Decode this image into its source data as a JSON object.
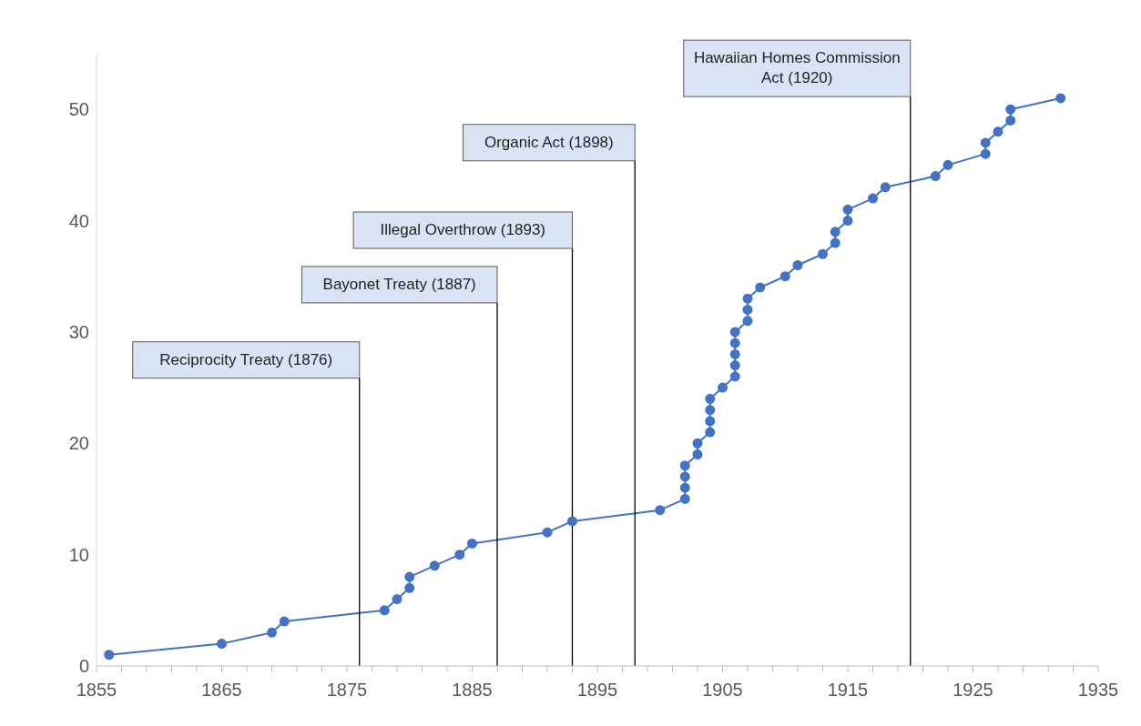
{
  "chart_data": {
    "type": "line",
    "x": [
      1856,
      1865,
      1869,
      1870,
      1878,
      1879,
      1880,
      1880,
      1882,
      1884,
      1885,
      1891,
      1893,
      1900,
      1902,
      1902,
      1902,
      1902,
      1903,
      1903,
      1904,
      1904,
      1904,
      1904,
      1905,
      1906,
      1906,
      1906,
      1906,
      1906,
      1907,
      1907,
      1907,
      1908,
      1910,
      1911,
      1913,
      1914,
      1914,
      1915,
      1915,
      1917,
      1918,
      1922,
      1923,
      1926,
      1926,
      1927,
      1928,
      1928,
      1932
    ],
    "series": [
      {
        "color": "#4472c4",
        "values": [
          1,
          2,
          3,
          4,
          5,
          6,
          7,
          8,
          9,
          10,
          11,
          12,
          13,
          14,
          15,
          16,
          17,
          18,
          19,
          20,
          21,
          22,
          23,
          24,
          25,
          26,
          27,
          28,
          29,
          30,
          31,
          32,
          33,
          34,
          35,
          36,
          37,
          38,
          39,
          40,
          41,
          42,
          43,
          44,
          45,
          46,
          47,
          48,
          49,
          50,
          51
        ]
      }
    ],
    "marker": "circle",
    "line_style": "solid",
    "grid": false,
    "legend": false,
    "xlim": [
      1855,
      1935
    ],
    "xticks": [
      1855,
      {
        "value": 1857,
        "label": null
      },
      {
        "value": 1859,
        "label": null
      },
      {
        "value": 1861,
        "label": null
      },
      {
        "value": 1863,
        "label": null
      },
      1865,
      {
        "value": 1867,
        "label": null
      },
      {
        "value": 1869,
        "label": null
      },
      {
        "value": 1871,
        "label": null
      },
      {
        "value": 1873,
        "label": null
      },
      1875,
      {
        "value": 1877,
        "label": null
      },
      {
        "value": 1879,
        "label": null
      },
      {
        "value": 1881,
        "label": null
      },
      {
        "value": 1883,
        "label": null
      },
      1885,
      {
        "value": 1887,
        "label": null
      },
      {
        "value": 1889,
        "label": null
      },
      {
        "value": 1891,
        "label": null
      },
      {
        "value": 1893,
        "label": null
      },
      1895,
      {
        "value": 1897,
        "label": null
      },
      {
        "value": 1899,
        "label": null
      },
      {
        "value": 1901,
        "label": null
      },
      {
        "value": 1903,
        "label": null
      },
      1905,
      {
        "value": 1907,
        "label": null
      },
      {
        "value": 1909,
        "label": null
      },
      {
        "value": 1911,
        "label": null
      },
      {
        "value": 1913,
        "label": null
      },
      1915,
      {
        "value": 1917,
        "label": null
      },
      {
        "value": 1919,
        "label": null
      },
      {
        "value": 1921,
        "label": null
      },
      {
        "value": 1923,
        "label": null
      },
      1925,
      {
        "value": 1927,
        "label": null
      },
      {
        "value": 1929,
        "label": null
      },
      {
        "value": 1931,
        "label": null
      },
      {
        "value": 1933,
        "label": null
      },
      1935
    ],
    "ylim": [
      0,
      55
    ],
    "yticks": [
      0,
      10,
      20,
      30,
      40,
      50
    ],
    "ref_lines": [
      {
        "axis": "x",
        "value": 1876,
        "label": "Reciprocity Treaty (1876)",
        "color": "#000000"
      },
      {
        "axis": "x",
        "value": 1887,
        "label": "Bayonet Treaty (1887)",
        "color": "#000000"
      },
      {
        "axis": "x",
        "value": 1893,
        "label": "Illegal Overthrow (1893)",
        "color": "#000000"
      },
      {
        "axis": "x",
        "value": 1898,
        "label": "Organic Act (1898)",
        "color": "#000000"
      },
      {
        "axis": "x",
        "value": 1920,
        "label": "Hawaiian Homes Commission Act (1920)",
        "color": "#000000"
      }
    ]
  }
}
